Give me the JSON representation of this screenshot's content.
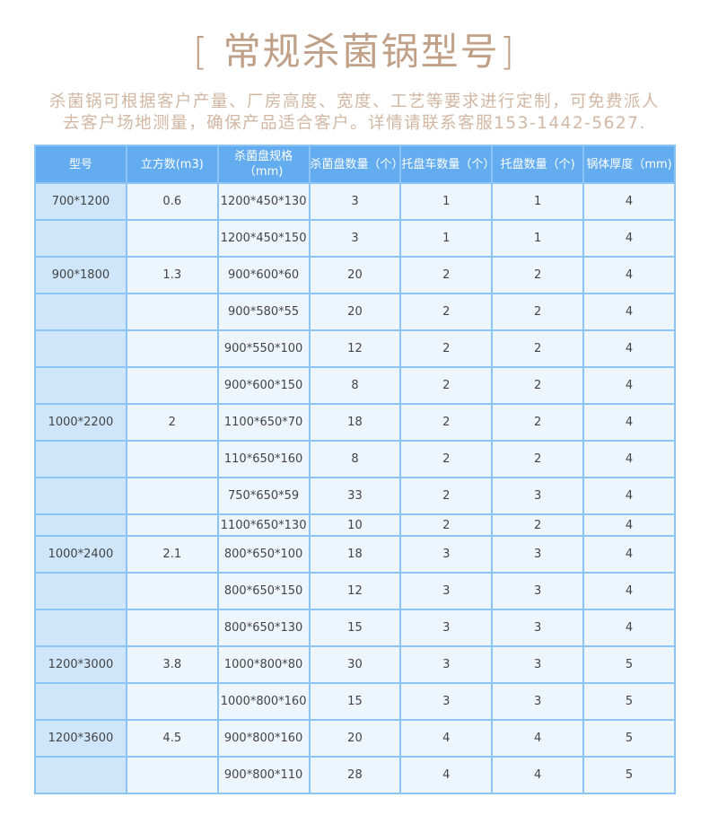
{
  "title": "[ 常规杀菌锅型号]",
  "description": [
    "杀菌锅可根据客户产量、厂房高度、宽度、工艺等要求进行定制，可免费派人",
    "去客户场地测量，确保产品适合客户。详情请联系客服153-1442-5627."
  ],
  "colors": {
    "header_bg": "#63acf0",
    "border": "#8cc4f5",
    "first_col_bg": "#cfe5fa",
    "cell_bg": "#eef6fd",
    "title": "#c1a088"
  },
  "table": {
    "headers": [
      "型号",
      "立方数(m3)",
      "杀菌盘规格（mm)",
      "杀菌盘数量（个）",
      "托盘车数量（个）",
      "托盘数量（个)",
      "锅体厚度（mm)"
    ],
    "rows": [
      [
        "700*1200",
        "0.6",
        "1200*450*130",
        "3",
        "1",
        "1",
        "4"
      ],
      [
        "",
        "",
        "1200*450*150",
        "3",
        "1",
        "1",
        "4"
      ],
      [
        "900*1800",
        "1.3",
        "900*600*60",
        "20",
        "2",
        "2",
        "4"
      ],
      [
        "",
        "",
        "900*580*55",
        "20",
        "2",
        "2",
        "4"
      ],
      [
        "",
        "",
        "900*550*100",
        "12",
        "2",
        "2",
        "4"
      ],
      [
        "",
        "",
        "900*600*150",
        "8",
        "2",
        "2",
        "4"
      ],
      [
        "1000*2200",
        "2",
        "1100*650*70",
        "18",
        "2",
        "2",
        "4"
      ],
      [
        "",
        "",
        "110*650*160",
        "8",
        "2",
        "2",
        "4"
      ],
      [
        "",
        "",
        "750*650*59",
        "33",
        "2",
        "3",
        "4"
      ],
      [
        "",
        "",
        "1100*650*130",
        "10",
        "2",
        "2",
        "4"
      ],
      [
        "1000*2400",
        "2.1",
        "800*650*100",
        "18",
        "3",
        "3",
        "4"
      ],
      [
        "",
        "",
        "800*650*150",
        "12",
        "3",
        "3",
        "4"
      ],
      [
        "",
        "",
        "800*650*130",
        "15",
        "3",
        "3",
        "4"
      ],
      [
        "1200*3000",
        "3.8",
        "1000*800*80",
        "30",
        "3",
        "3",
        "5"
      ],
      [
        "",
        "",
        "1000*800*160",
        "15",
        "3",
        "3",
        "5"
      ],
      [
        "1200*3600",
        "4.5",
        "900*800*160",
        "20",
        "4",
        "4",
        "5"
      ],
      [
        "",
        "",
        "900*800*110",
        "28",
        "4",
        "4",
        "5"
      ]
    ]
  }
}
